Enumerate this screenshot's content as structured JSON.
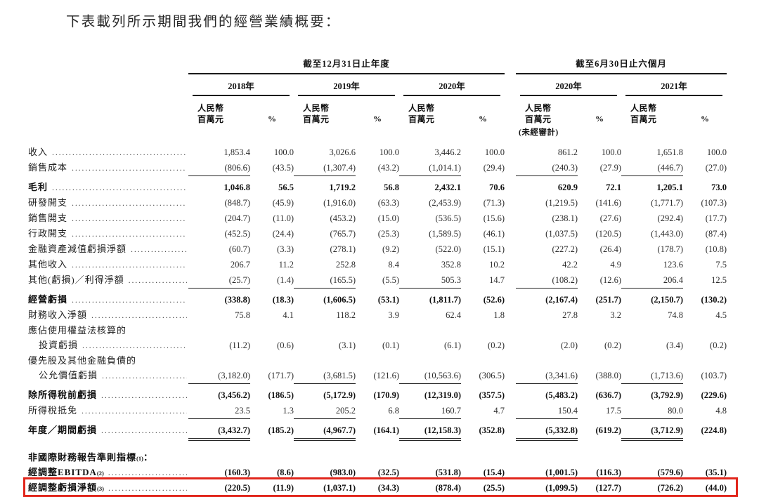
{
  "title": "下表載列所示期間我們的經營業績概要：",
  "colors": {
    "highlight_box": "#e1261c",
    "rule_line": "#1a1a1a",
    "text": "#242424"
  },
  "table": {
    "group_headers": [
      {
        "label": "截至12月31日止年度"
      },
      {
        "label": "截至6月30日止六個月"
      }
    ],
    "year_headers": [
      "2018年",
      "2019年",
      "2020年",
      "2020年",
      "2021年"
    ],
    "unit_header": {
      "line1": "人民幣",
      "line2": "百萬元"
    },
    "percent_header": "%",
    "unaudited_note": "(未經審計)",
    "rows": [
      {
        "label": "收入",
        "dots": true,
        "bold": false,
        "gap": "none",
        "rule": "none",
        "indent": false,
        "sup": "",
        "suffix": "",
        "highlight": false,
        "values": [
          "1,853.4",
          "100.0",
          "3,026.6",
          "100.0",
          "3,446.2",
          "100.0",
          "861.2",
          "100.0",
          "1,651.8",
          "100.0"
        ]
      },
      {
        "label": "銷售成本",
        "dots": true,
        "bold": false,
        "gap": "none",
        "rule": "single",
        "indent": false,
        "sup": "",
        "suffix": "",
        "highlight": false,
        "values": [
          "(806.6)",
          "(43.5)",
          "(1,307.4)",
          "(43.2)",
          "(1,014.1)",
          "(29.4)",
          "(240.3)",
          "(27.9)",
          "(446.7)",
          "(27.0)"
        ]
      },
      {
        "label": "毛利",
        "dots": true,
        "bold": true,
        "gap": "small",
        "rule": "none",
        "indent": false,
        "sup": "",
        "suffix": "",
        "highlight": false,
        "values": [
          "1,046.8",
          "56.5",
          "1,719.2",
          "56.8",
          "2,432.1",
          "70.6",
          "620.9",
          "72.1",
          "1,205.1",
          "73.0"
        ]
      },
      {
        "label": "研發開支",
        "dots": true,
        "bold": false,
        "gap": "none",
        "rule": "none",
        "indent": false,
        "sup": "",
        "suffix": "",
        "highlight": false,
        "values": [
          "(848.7)",
          "(45.9)",
          "(1,916.0)",
          "(63.3)",
          "(2,453.9)",
          "(71.3)",
          "(1,219.5)",
          "(141.6)",
          "(1,771.7)",
          "(107.3)"
        ]
      },
      {
        "label": "銷售開支",
        "dots": true,
        "bold": false,
        "gap": "none",
        "rule": "none",
        "indent": false,
        "sup": "",
        "suffix": "",
        "highlight": false,
        "values": [
          "(204.7)",
          "(11.0)",
          "(453.2)",
          "(15.0)",
          "(536.5)",
          "(15.6)",
          "(238.1)",
          "(27.6)",
          "(292.4)",
          "(17.7)"
        ]
      },
      {
        "label": "行政開支",
        "dots": true,
        "bold": false,
        "gap": "none",
        "rule": "none",
        "indent": false,
        "sup": "",
        "suffix": "",
        "highlight": false,
        "values": [
          "(452.5)",
          "(24.4)",
          "(765.7)",
          "(25.3)",
          "(1,589.5)",
          "(46.1)",
          "(1,037.5)",
          "(120.5)",
          "(1,443.0)",
          "(87.4)"
        ]
      },
      {
        "label": "金融資產減值虧損淨額",
        "dots": true,
        "bold": false,
        "gap": "none",
        "rule": "none",
        "indent": false,
        "sup": "",
        "suffix": "",
        "highlight": false,
        "values": [
          "(60.7)",
          "(3.3)",
          "(278.1)",
          "(9.2)",
          "(522.0)",
          "(15.1)",
          "(227.2)",
          "(26.4)",
          "(178.7)",
          "(10.8)"
        ]
      },
      {
        "label": "其他收入",
        "dots": true,
        "bold": false,
        "gap": "none",
        "rule": "none",
        "indent": false,
        "sup": "",
        "suffix": "",
        "highlight": false,
        "values": [
          "206.7",
          "11.2",
          "252.8",
          "8.4",
          "352.8",
          "10.2",
          "42.2",
          "4.9",
          "123.6",
          "7.5"
        ]
      },
      {
        "label": "其他(虧損)／利得淨額",
        "dots": true,
        "bold": false,
        "gap": "none",
        "rule": "single",
        "indent": false,
        "sup": "",
        "suffix": "",
        "highlight": false,
        "values": [
          "(25.7)",
          "(1.4)",
          "(165.5)",
          "(5.5)",
          "505.3",
          "14.7",
          "(108.2)",
          "(12.6)",
          "206.4",
          "12.5"
        ]
      },
      {
        "label": "經營虧損",
        "dots": true,
        "bold": true,
        "gap": "small",
        "rule": "none",
        "indent": false,
        "sup": "",
        "suffix": "",
        "highlight": false,
        "values": [
          "(338.8)",
          "(18.3)",
          "(1,606.5)",
          "(53.1)",
          "(1,811.7)",
          "(52.6)",
          "(2,167.4)",
          "(251.7)",
          "(2,150.7)",
          "(130.2)"
        ]
      },
      {
        "label": "財務收入淨額",
        "dots": true,
        "bold": false,
        "gap": "none",
        "rule": "none",
        "indent": false,
        "sup": "",
        "suffix": "",
        "highlight": false,
        "values": [
          "75.8",
          "4.1",
          "118.2",
          "3.9",
          "62.4",
          "1.8",
          "27.8",
          "3.2",
          "74.8",
          "4.5"
        ]
      },
      {
        "label": "應佔使用權益法核算的",
        "dots": false,
        "bold": false,
        "gap": "none",
        "rule": "none",
        "indent": false,
        "sup": "",
        "suffix": "",
        "highlight": false,
        "values": []
      },
      {
        "label": "投資虧損",
        "dots": true,
        "bold": false,
        "gap": "none",
        "rule": "none",
        "indent": true,
        "sup": "",
        "suffix": "",
        "highlight": false,
        "values": [
          "(11.2)",
          "(0.6)",
          "(3.1)",
          "(0.1)",
          "(6.1)",
          "(0.2)",
          "(2.0)",
          "(0.2)",
          "(3.4)",
          "(0.2)"
        ]
      },
      {
        "label": "優先股及其他金融負債的",
        "dots": false,
        "bold": false,
        "gap": "none",
        "rule": "none",
        "indent": false,
        "sup": "",
        "suffix": "",
        "highlight": false,
        "values": []
      },
      {
        "label": "公允價值虧損",
        "dots": true,
        "bold": false,
        "gap": "none",
        "rule": "single",
        "indent": true,
        "sup": "",
        "suffix": "",
        "highlight": false,
        "values": [
          "(3,182.0)",
          "(171.7)",
          "(3,681.5)",
          "(121.6)",
          "(10,563.6)",
          "(306.5)",
          "(3,341.6)",
          "(388.0)",
          "(1,713.6)",
          "(103.7)"
        ]
      },
      {
        "label": "除所得稅前虧損",
        "dots": true,
        "bold": true,
        "gap": "small",
        "rule": "none",
        "indent": false,
        "sup": "",
        "suffix": "",
        "highlight": false,
        "values": [
          "(3,456.2)",
          "(186.5)",
          "(5,172.9)",
          "(170.9)",
          "(12,319.0)",
          "(357.5)",
          "(5,483.2)",
          "(636.7)",
          "(3,792.9)",
          "(229.6)"
        ]
      },
      {
        "label": "所得稅抵免",
        "dots": true,
        "bold": false,
        "gap": "none",
        "rule": "single",
        "indent": false,
        "sup": "",
        "suffix": "",
        "highlight": false,
        "values": [
          "23.5",
          "1.3",
          "205.2",
          "6.8",
          "160.7",
          "4.7",
          "150.4",
          "17.5",
          "80.0",
          "4.8"
        ]
      },
      {
        "label": "年度／期間虧損",
        "dots": true,
        "bold": true,
        "gap": "small",
        "rule": "double",
        "indent": false,
        "sup": "",
        "suffix": "",
        "highlight": false,
        "values": [
          "(3,432.7)",
          "(185.2)",
          "(4,967.7)",
          "(164.1)",
          "(12,158.3)",
          "(352.8)",
          "(5,332.8)",
          "(619.2)",
          "(3,712.9)",
          "(224.8)"
        ]
      },
      {
        "label": "非國際財務報告準則指標",
        "dots": false,
        "bold": true,
        "gap": "large",
        "rule": "none",
        "indent": false,
        "sup": "(1)",
        "suffix": "：",
        "highlight": false,
        "values": []
      },
      {
        "label": "經調整EBITDA",
        "dots": true,
        "bold": true,
        "gap": "none",
        "rule": "none",
        "indent": false,
        "sup": "(2)",
        "suffix": "",
        "highlight": false,
        "values": [
          "(160.3)",
          "(8.6)",
          "(983.0)",
          "(32.5)",
          "(531.8)",
          "(15.4)",
          "(1,001.5)",
          "(116.3)",
          "(579.6)",
          "(35.1)"
        ]
      },
      {
        "label": "經調整虧損淨額",
        "dots": true,
        "bold": true,
        "gap": "none",
        "rule": "none",
        "indent": false,
        "sup": "(3)",
        "suffix": "",
        "highlight": true,
        "values": [
          "(220.5)",
          "(11.9)",
          "(1,037.1)",
          "(34.3)",
          "(878.4)",
          "(25.5)",
          "(1,099.5)",
          "(127.7)",
          "(726.2)",
          "(44.0)"
        ]
      }
    ]
  }
}
